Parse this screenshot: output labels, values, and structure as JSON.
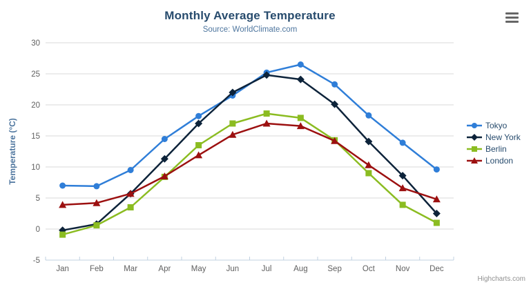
{
  "header": {
    "title": "Monthly Average Temperature",
    "subtitle": "Source: WorldClimate.com"
  },
  "chart_data": {
    "type": "line",
    "categories": [
      "Jan",
      "Feb",
      "Mar",
      "Apr",
      "May",
      "Jun",
      "Jul",
      "Aug",
      "Sep",
      "Oct",
      "Nov",
      "Dec"
    ],
    "series": [
      {
        "name": "Tokyo",
        "color": "#2f7ed8",
        "marker": "circle",
        "values": [
          7.0,
          6.9,
          9.5,
          14.5,
          18.2,
          21.5,
          25.2,
          26.5,
          23.3,
          18.3,
          13.9,
          9.6
        ]
      },
      {
        "name": "New York",
        "color": "#0d233a",
        "marker": "diamond",
        "values": [
          -0.2,
          0.8,
          5.7,
          11.3,
          17.0,
          22.0,
          24.8,
          24.1,
          20.1,
          14.1,
          8.6,
          2.5
        ]
      },
      {
        "name": "Berlin",
        "color": "#8bbc21",
        "marker": "square",
        "values": [
          -0.9,
          0.6,
          3.5,
          8.4,
          13.5,
          17.0,
          18.6,
          17.9,
          14.3,
          9.0,
          3.9,
          1.0
        ]
      },
      {
        "name": "London",
        "color": "#9c1010",
        "marker": "triangle",
        "values": [
          3.9,
          4.2,
          5.7,
          8.5,
          11.9,
          15.2,
          17.0,
          16.6,
          14.2,
          10.3,
          6.6,
          4.8
        ]
      }
    ],
    "title": "Monthly Average Temperature",
    "subtitle": "Source: WorldClimate.com",
    "xlabel": "",
    "ylabel": "Temperature (°C)",
    "ylim": [
      -5,
      30
    ],
    "ytick_step": 5,
    "grid": true,
    "legend_position": "right"
  },
  "icons": {
    "menu": "hamburger-icon"
  },
  "credits": {
    "label": "Highcharts.com"
  },
  "palette": {
    "title": "#274b6d",
    "subtitle": "#4d759e",
    "axis_title": "#4d759e",
    "tick_label": "#606060",
    "grid": "#d8d8d8",
    "axis_line": "#c0d0e0",
    "legend_text": "#274b6d",
    "credits": "#909090",
    "menu_icon": "#666666"
  }
}
